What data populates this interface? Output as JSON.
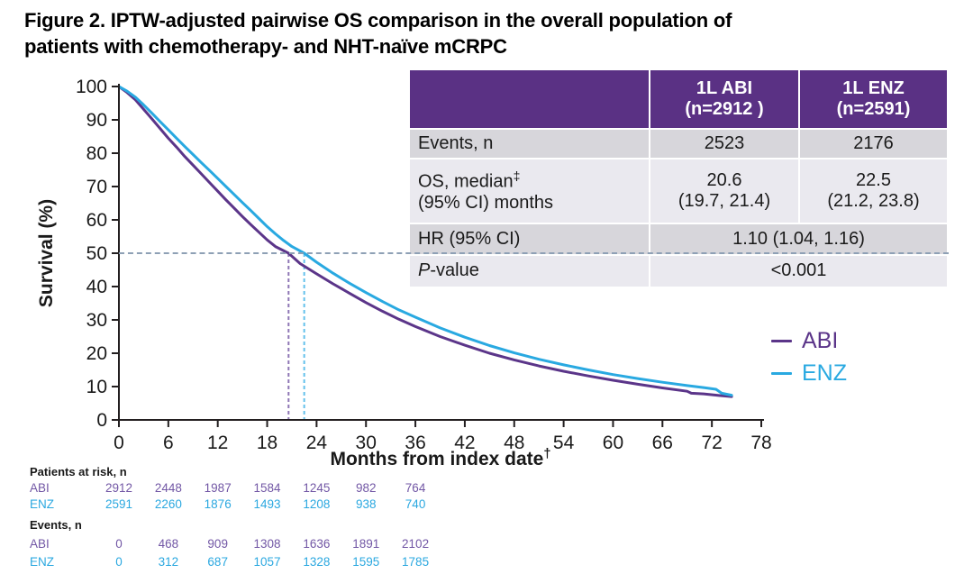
{
  "title": {
    "line1": "Figure 2. IPTW-adjusted pairwise OS comparison in the overall population of",
    "line2": "patients with chemotherapy- and NHT-naïve mCRPC"
  },
  "chart_data": {
    "type": "line",
    "subtype": "kaplan-meier-survival",
    "xlabel": "Months from index date",
    "xlabel_sup": "†",
    "ylabel": "Survival (%)",
    "xlim": [
      0,
      78
    ],
    "xstep": 6,
    "ylim": [
      0,
      100
    ],
    "ystep": 10,
    "grid": false,
    "legend_position": "right",
    "reference_line": {
      "y": 50,
      "style": "dashed",
      "color": "#8ea0b5"
    },
    "series": [
      {
        "name": "ABI",
        "color": "#5b3589",
        "median_dash_color": "#8f77b5",
        "median_months": 20.6,
        "points": [
          [
            0,
            100
          ],
          [
            1,
            98.2
          ],
          [
            2,
            96.0
          ],
          [
            3,
            93.2
          ],
          [
            4,
            90.3
          ],
          [
            5,
            87.4
          ],
          [
            6,
            84.5
          ],
          [
            7,
            81.8
          ],
          [
            8,
            79.0
          ],
          [
            9,
            76.4
          ],
          [
            10,
            73.8
          ],
          [
            11,
            71.2
          ],
          [
            12,
            68.6
          ],
          [
            13,
            66.0
          ],
          [
            14,
            63.5
          ],
          [
            15,
            61.0
          ],
          [
            16,
            58.6
          ],
          [
            17,
            56.3
          ],
          [
            18,
            54.0
          ],
          [
            19,
            52.0
          ],
          [
            20.6,
            50.0
          ],
          [
            22,
            46.9
          ],
          [
            24,
            43.8
          ],
          [
            26,
            40.8
          ],
          [
            28,
            38.0
          ],
          [
            30,
            35.2
          ],
          [
            32,
            32.6
          ],
          [
            34,
            30.2
          ],
          [
            36,
            28.0
          ],
          [
            39,
            25.0
          ],
          [
            42,
            22.4
          ],
          [
            45,
            20.0
          ],
          [
            48,
            18.0
          ],
          [
            51,
            16.2
          ],
          [
            54,
            14.6
          ],
          [
            57,
            13.2
          ],
          [
            60,
            11.9
          ],
          [
            63,
            10.7
          ],
          [
            66,
            9.6
          ],
          [
            69,
            8.6
          ],
          [
            69.5,
            8.0
          ],
          [
            71,
            7.8
          ],
          [
            73,
            7.3
          ],
          [
            74.4,
            7.0
          ]
        ]
      },
      {
        "name": "ENZ",
        "color": "#29a9e1",
        "median_dash_color": "#63c1ec",
        "median_months": 22.5,
        "points": [
          [
            0,
            100
          ],
          [
            1,
            98.6
          ],
          [
            2,
            96.8
          ],
          [
            3,
            94.5
          ],
          [
            4,
            92.0
          ],
          [
            5,
            89.5
          ],
          [
            6,
            87.0
          ],
          [
            7,
            84.5
          ],
          [
            8,
            82.0
          ],
          [
            9,
            79.6
          ],
          [
            10,
            77.2
          ],
          [
            11,
            74.8
          ],
          [
            12,
            72.4
          ],
          [
            13,
            70.0
          ],
          [
            14,
            67.6
          ],
          [
            15,
            65.2
          ],
          [
            16,
            62.8
          ],
          [
            17,
            60.4
          ],
          [
            18,
            58.0
          ],
          [
            19,
            55.8
          ],
          [
            20,
            53.8
          ],
          [
            21,
            52.0
          ],
          [
            22.5,
            50.0
          ],
          [
            24,
            47.3
          ],
          [
            26,
            44.0
          ],
          [
            28,
            41.0
          ],
          [
            30,
            38.2
          ],
          [
            32,
            35.5
          ],
          [
            34,
            33.0
          ],
          [
            36,
            30.8
          ],
          [
            39,
            27.6
          ],
          [
            42,
            24.8
          ],
          [
            45,
            22.3
          ],
          [
            48,
            20.1
          ],
          [
            51,
            18.2
          ],
          [
            54,
            16.5
          ],
          [
            57,
            15.0
          ],
          [
            60,
            13.6
          ],
          [
            63,
            12.4
          ],
          [
            66,
            11.3
          ],
          [
            69,
            10.3
          ],
          [
            71,
            9.7
          ],
          [
            72.5,
            9.2
          ],
          [
            73.2,
            8.0
          ],
          [
            74.4,
            7.4
          ]
        ]
      }
    ]
  },
  "stats_table": {
    "header": {
      "col1": "",
      "col2_line1": "1L ABI",
      "col2_line2": "(n=2912 )",
      "col3_line1": "1L ENZ",
      "col3_line2": "(n=2591)"
    },
    "rows": {
      "events": {
        "label": "Events, n",
        "abi": "2523",
        "enz": "2176"
      },
      "os": {
        "label_line1": "OS, median",
        "label_sup": "‡",
        "label_line2": "(95% CI) months",
        "abi_line1": "20.6",
        "abi_line2": "(19.7, 21.4)",
        "enz_line1": "22.5",
        "enz_line2": "(21.2, 23.8)"
      },
      "hr": {
        "label": "HR (95% CI)",
        "value": "1.10 (1.04, 1.16)"
      },
      "pvalue": {
        "label_italic": "P",
        "label_rest": "-value",
        "value": "<0.001"
      }
    }
  },
  "legend": {
    "abi": "ABI",
    "enz": "ENZ"
  },
  "at_risk": {
    "months": [
      0,
      6,
      12,
      18,
      24,
      30,
      36
    ],
    "patients_title": "Patients at risk, n",
    "events_title": "Events, n",
    "patients": [
      {
        "label": "ABI",
        "values": [
          "2912",
          "2448",
          "1987",
          "1584",
          "1245",
          "982",
          "764"
        ]
      },
      {
        "label": "ENZ",
        "values": [
          "2591",
          "2260",
          "1876",
          "1493",
          "1208",
          "938",
          "740"
        ]
      }
    ],
    "events": [
      {
        "label": "ABI",
        "values": [
          "0",
          "468",
          "909",
          "1308",
          "1636",
          "1891",
          "2102"
        ]
      },
      {
        "label": "ENZ",
        "values": [
          "0",
          "312",
          "687",
          "1057",
          "1328",
          "1595",
          "1785"
        ]
      }
    ]
  },
  "colors": {
    "abi_curve": "#5b3589",
    "enz_curve": "#29a9e1",
    "abi_text": "#7257a5",
    "enz_text": "#2ba8e0",
    "table_header_bg": "#5a3184",
    "table_row_dark": "#d7d6db",
    "table_row_light": "#eae9ef",
    "reference_dash": "#8ea0b5",
    "axis": "#231f20"
  }
}
